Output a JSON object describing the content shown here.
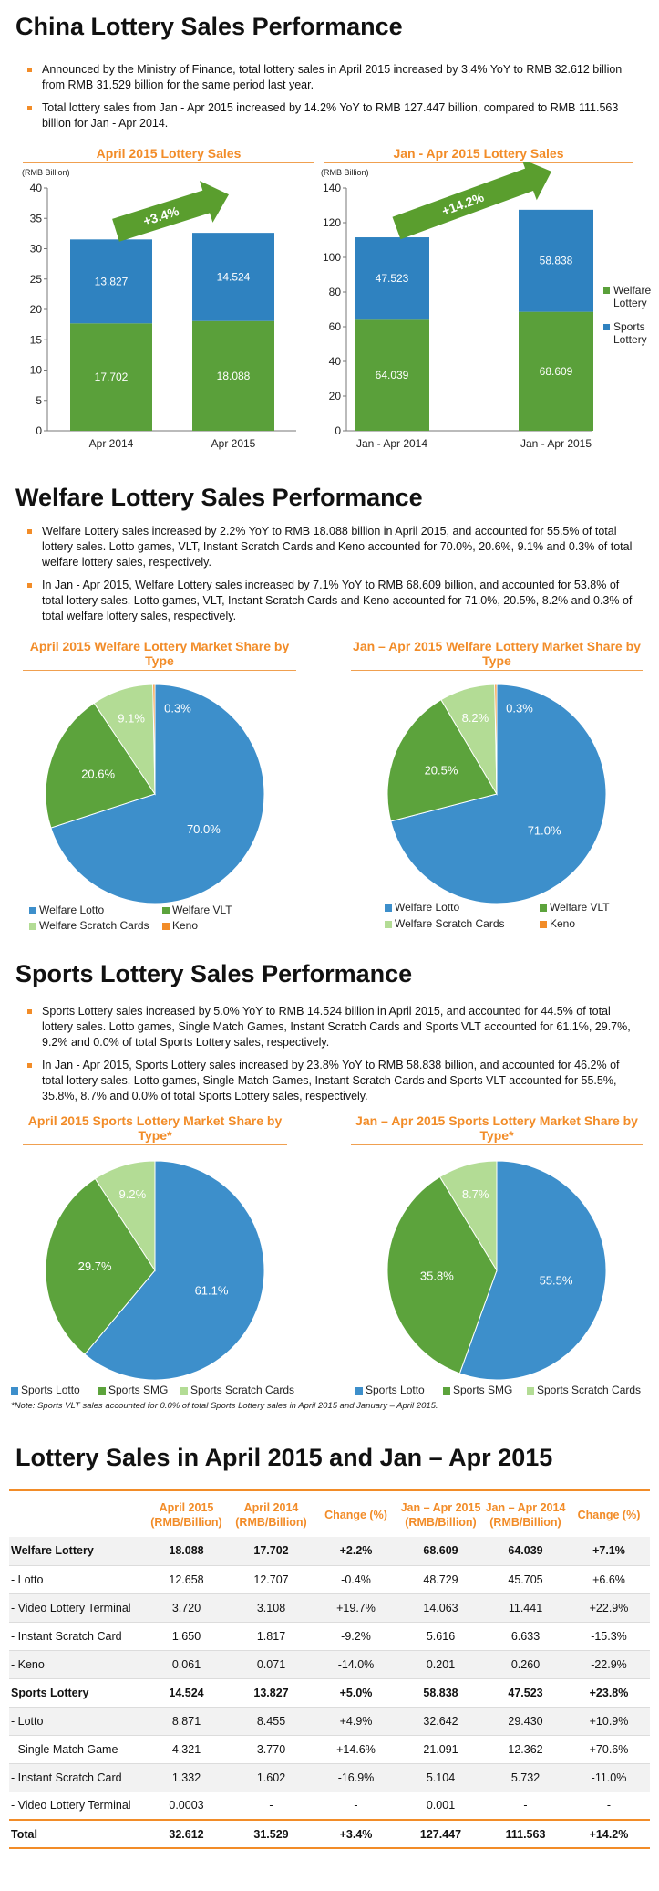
{
  "sections": {
    "china_title": "China Lottery Sales Performance",
    "china_bullets": [
      "Announced by the Ministry of Finance, total lottery sales in April 2015 increased by 3.4% YoY to RMB 32.612 billion from RMB 31.529 billion for the same period last year.",
      "Total lottery sales from Jan - Apr 2015 increased by 14.2% YoY to RMB 127.447 billion, compared to RMB 111.563 billion for Jan - Apr 2014."
    ],
    "welfare_title": "Welfare Lottery Sales Performance",
    "welfare_bullets": [
      "Welfare Lottery sales increased by 2.2% YoY to RMB 18.088 billion in April 2015, and accounted for 55.5% of total lottery sales. Lotto games, VLT, Instant Scratch Cards and Keno accounted for 70.0%, 20.6%, 9.1% and 0.3% of total welfare lottery sales, respectively.",
      "In Jan - Apr 2015, Welfare Lottery sales increased by 7.1% YoY to RMB 68.609 billion, and accounted for 53.8% of total lottery sales. Lotto games, VLT, Instant Scratch Cards and Keno accounted for 71.0%, 20.5%, 8.2% and 0.3% of total welfare lottery sales, respectively."
    ],
    "sports_title": "Sports Lottery Sales Performance",
    "sports_bullets": [
      "Sports Lottery sales increased by 5.0% YoY to RMB 14.524 billion in April 2015, and accounted for 44.5% of total lottery sales. Lotto games, Single Match Games, Instant Scratch Cards and Sports VLT accounted for 61.1%, 29.7%, 9.2% and 0.0% of total Sports Lottery sales, respectively.",
      "In Jan - Apr 2015, Sports Lottery sales increased by 23.8% YoY to RMB 58.838 billion, and accounted for 46.2% of total lottery sales. Lotto games, Single Match Games, Instant Scratch Cards and Sports VLT accounted for 55.5%, 35.8%, 8.7% and 0.0% of total Sports Lottery sales, respectively."
    ],
    "sports_note": "*Note: Sports VLT sales accounted for 0.0% of total Sports Lottery sales in April 2015 and January – April 2015.",
    "table_title": "Lottery Sales in April 2015 and Jan – Apr 2015"
  },
  "colors": {
    "accent": "#F28C28",
    "welfare_green": "#5AA03A",
    "sports_blue": "#2F82C0",
    "pie_blue": "#3D8FCB",
    "pie_green": "#5CA33C",
    "pie_light": "#B3DC95",
    "pie_orange": "#F28C28"
  },
  "chart_data": [
    {
      "type": "bar",
      "stacked": true,
      "title": "April 2015 Lottery Sales",
      "ylabel": "(RMB Billion)",
      "ylim": [
        0,
        40
      ],
      "yticks": [
        0,
        5,
        10,
        15,
        20,
        25,
        30,
        35,
        40
      ],
      "categories": [
        "Apr 2014",
        "Apr 2015"
      ],
      "series": [
        {
          "name": "Welfare Lottery",
          "values": [
            17.702,
            18.088
          ],
          "labels": [
            "17.702",
            "18.088"
          ]
        },
        {
          "name": "Sports Lottery",
          "values": [
            13.827,
            14.524
          ],
          "labels": [
            "13.827",
            "14.524"
          ]
        }
      ],
      "annotation": "+3.4%"
    },
    {
      "type": "bar",
      "stacked": true,
      "title": "Jan - Apr 2015 Lottery Sales",
      "ylabel": "(RMB Billion)",
      "ylim": [
        0,
        140
      ],
      "yticks": [
        0,
        20,
        40,
        60,
        80,
        100,
        120,
        140
      ],
      "categories": [
        "Jan - Apr 2014",
        "Jan - Apr 2015"
      ],
      "series": [
        {
          "name": "Welfare Lottery",
          "values": [
            64.039,
            68.609
          ],
          "labels": [
            "64.039",
            "68.609"
          ]
        },
        {
          "name": "Sports Lottery",
          "values": [
            47.523,
            58.838
          ],
          "labels": [
            "47.523",
            "58.838"
          ]
        }
      ],
      "annotation": "+14.2%",
      "legend": [
        "Welfare Lottery",
        "Sports Lottery"
      ]
    },
    {
      "type": "pie",
      "title": "April 2015 Welfare Lottery Market Share by Type",
      "slices": [
        {
          "name": "Welfare Lotto",
          "value": 70.0,
          "label": "70.0%"
        },
        {
          "name": "Welfare VLT",
          "value": 20.6,
          "label": "20.6%"
        },
        {
          "name": "Welfare Scratch Cards",
          "value": 9.1,
          "label": "9.1%"
        },
        {
          "name": "Keno",
          "value": 0.3,
          "label": "0.3%"
        }
      ]
    },
    {
      "type": "pie",
      "title": "Jan – Apr 2015 Welfare Lottery Market Share by Type",
      "slices": [
        {
          "name": "Welfare Lotto",
          "value": 71.0,
          "label": "71.0%"
        },
        {
          "name": "Welfare VLT",
          "value": 20.5,
          "label": "20.5%"
        },
        {
          "name": "Welfare Scratch Cards",
          "value": 8.2,
          "label": "8.2%"
        },
        {
          "name": "Keno",
          "value": 0.3,
          "label": "0.3%"
        }
      ]
    },
    {
      "type": "pie",
      "title": "April 2015 Sports Lottery Market Share by Type*",
      "slices": [
        {
          "name": "Sports Lotto",
          "value": 61.1,
          "label": "61.1%"
        },
        {
          "name": "Sports SMG",
          "value": 29.7,
          "label": "29.7%"
        },
        {
          "name": "Sports Scratch Cards",
          "value": 9.2,
          "label": "9.2%"
        }
      ]
    },
    {
      "type": "pie",
      "title": "Jan – Apr 2015 Sports Lottery Market Share by Type*",
      "slices": [
        {
          "name": "Sports Lotto",
          "value": 55.5,
          "label": "55.5%"
        },
        {
          "name": "Sports SMG",
          "value": 35.8,
          "label": "35.8%"
        },
        {
          "name": "Sports Scratch Cards",
          "value": 8.7,
          "label": "8.7%"
        }
      ]
    },
    {
      "type": "table",
      "headers": [
        "",
        "April 2015 (RMB/Billion)",
        "April 2014 (RMB/Billion)",
        "Change (%)",
        "Jan – Apr 2015 (RMB/Billion)",
        "Jan – Apr 2014 (RMB/Billion)",
        "Change (%)"
      ],
      "rows": [
        {
          "style": "bold shade",
          "cells": [
            "Welfare Lottery",
            "18.088",
            "17.702",
            "+2.2%",
            "68.609",
            "64.039",
            "+7.1%"
          ]
        },
        {
          "style": "",
          "cells": [
            "- Lotto",
            "12.658",
            "12.707",
            "-0.4%",
            "48.729",
            "45.705",
            "+6.6%"
          ]
        },
        {
          "style": "shade",
          "cells": [
            "- Video Lottery Terminal",
            "3.720",
            "3.108",
            "+19.7%",
            "14.063",
            "11.441",
            "+22.9%"
          ]
        },
        {
          "style": "",
          "cells": [
            "- Instant Scratch Card",
            "1.650",
            "1.817",
            "-9.2%",
            "5.616",
            "6.633",
            "-15.3%"
          ]
        },
        {
          "style": "shade",
          "cells": [
            "- Keno",
            "0.061",
            "0.071",
            "-14.0%",
            "0.201",
            "0.260",
            "-22.9%"
          ]
        },
        {
          "style": "bold",
          "cells": [
            "Sports Lottery",
            "14.524",
            "13.827",
            "+5.0%",
            "58.838",
            "47.523",
            "+23.8%"
          ]
        },
        {
          "style": "shade",
          "cells": [
            "- Lotto",
            "8.871",
            "8.455",
            "+4.9%",
            "32.642",
            "29.430",
            "+10.9%"
          ]
        },
        {
          "style": "",
          "cells": [
            "- Single Match Game",
            "4.321",
            "3.770",
            "+14.6%",
            "21.091",
            "12.362",
            "+70.6%"
          ]
        },
        {
          "style": "shade",
          "cells": [
            "- Instant Scratch Card",
            "1.332",
            "1.602",
            "-16.9%",
            "5.104",
            "5.732",
            "-11.0%"
          ]
        },
        {
          "style": "",
          "cells": [
            "- Video Lottery Terminal",
            "0.0003",
            "-",
            "-",
            "0.001",
            "-",
            "-"
          ]
        },
        {
          "style": "total",
          "cells": [
            "Total",
            "32.612",
            "31.529",
            "+3.4%",
            "127.447",
            "111.563",
            "+14.2%"
          ]
        }
      ]
    }
  ]
}
